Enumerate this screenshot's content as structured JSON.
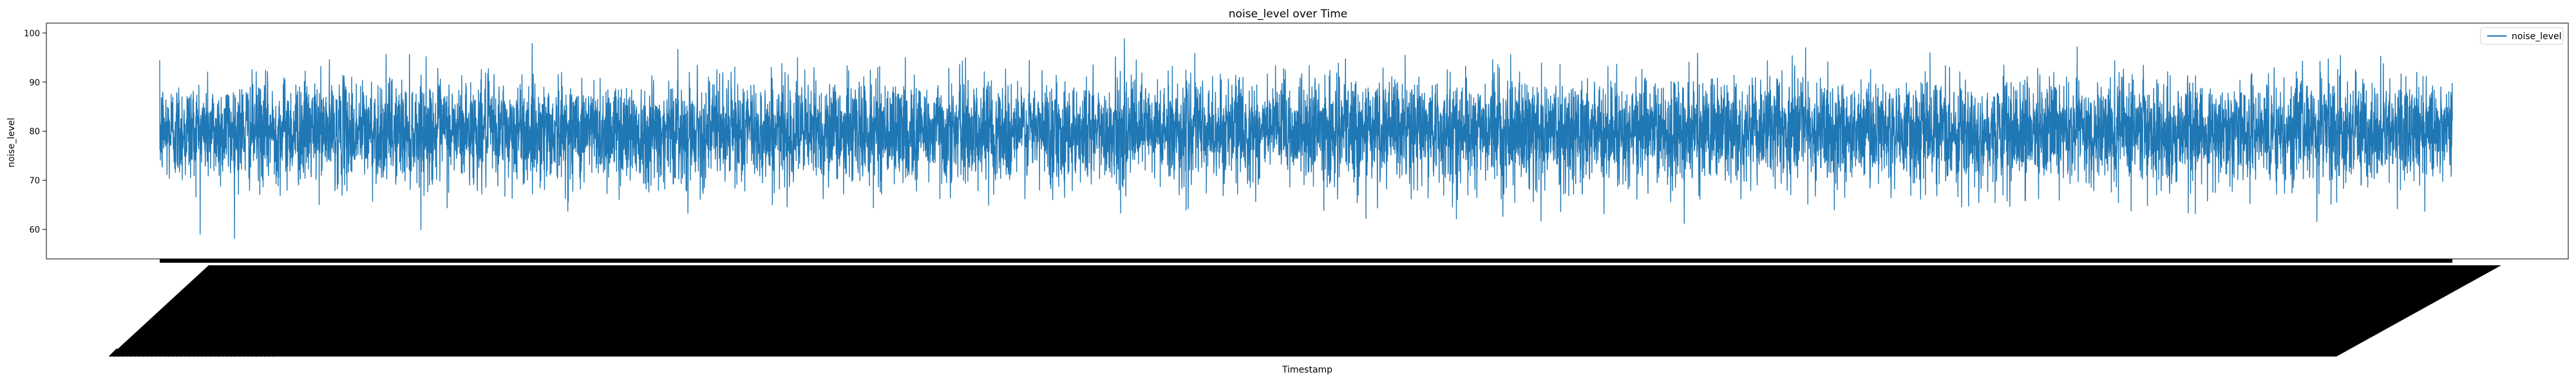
{
  "chart_data": {
    "type": "line",
    "title": "noise_level over Time",
    "xlabel": "Timestamp",
    "ylabel": "noise_level",
    "ylim": [
      54,
      102
    ],
    "yticks": [
      60,
      70,
      80,
      90,
      100
    ],
    "grid": false,
    "legend_position": "top-right",
    "series": [
      {
        "name": "noise_level",
        "color": "#1f77b4",
        "distribution": {
          "mean": 80,
          "typical_low": 70,
          "typical_high": 90,
          "min": 56,
          "max": 101
        }
      }
    ],
    "x_tick_labels_note": "dense overlapping timestamp labels rendered as solid black band"
  }
}
